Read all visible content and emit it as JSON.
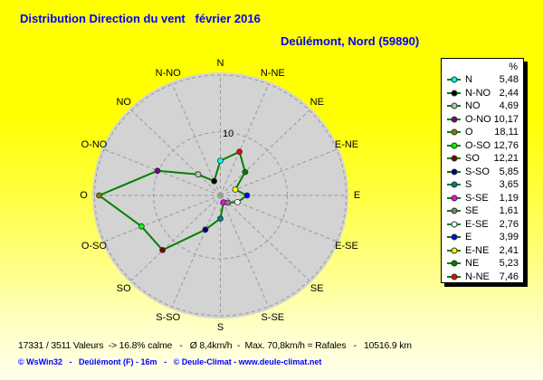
{
  "title": "Distribution Direction du vent   février 2016",
  "subtitle": "Deûlémont, Nord (59890)",
  "colors": {
    "background_top": "#ffff00",
    "background_bottom": "#ffffee",
    "disk": "#d3d3d3",
    "grid": "#999999",
    "title_text": "#0000ff",
    "body_text": "#000000",
    "credit_text": "#0000ff",
    "legend_background": "#ffffff",
    "series_line": "#008000"
  },
  "chart_data": {
    "type": "radar",
    "title": "Distribution Direction du vent février 2016",
    "subtitle": "Deûlémont, Nord (59890)",
    "unit": "%",
    "radial_tick_label": "10",
    "radial_ticks": [
      10,
      20
    ],
    "axis_max": 20,
    "grid": "dashed",
    "line_color": "#008000",
    "legend_position": "right",
    "directions": [
      {
        "label": "N",
        "angle": 0,
        "value": 5.48,
        "display": "5,48",
        "color": "#00ffff"
      },
      {
        "label": "N-NO",
        "angle": 337.5,
        "value": 2.44,
        "display": "2,44",
        "color": "#000000"
      },
      {
        "label": "NO",
        "angle": 315,
        "value": 4.69,
        "display": "4,69",
        "color": "#c0c0c0"
      },
      {
        "label": "O-NO",
        "angle": 292.5,
        "value": 10.17,
        "display": "10,17",
        "color": "#800080"
      },
      {
        "label": "O",
        "angle": 270,
        "value": 18.11,
        "display": "18,11",
        "color": "#808000"
      },
      {
        "label": "O-SO",
        "angle": 247.5,
        "value": 12.76,
        "display": "12,76",
        "color": "#00ff00"
      },
      {
        "label": "SO",
        "angle": 225,
        "value": 12.21,
        "display": "12,21",
        "color": "#800000"
      },
      {
        "label": "S-SO",
        "angle": 202.5,
        "value": 5.85,
        "display": "5,85",
        "color": "#000080"
      },
      {
        "label": "S",
        "angle": 180,
        "value": 3.65,
        "display": "3,65",
        "color": "#008080"
      },
      {
        "label": "S-SE",
        "angle": 157.5,
        "value": 1.19,
        "display": "1,19",
        "color": "#ff00ff"
      },
      {
        "label": "SE",
        "angle": 135,
        "value": 1.61,
        "display": "1,61",
        "color": "#808080"
      },
      {
        "label": "E-SE",
        "angle": 112.5,
        "value": 2.76,
        "display": "2,76",
        "color": "#ffffff"
      },
      {
        "label": "E",
        "angle": 90,
        "value": 3.99,
        "display": "3,99",
        "color": "#0000ff"
      },
      {
        "label": "E-NE",
        "angle": 67.5,
        "value": 2.41,
        "display": "2,41",
        "color": "#ffff00"
      },
      {
        "label": "NE",
        "angle": 45,
        "value": 5.23,
        "display": "5,23",
        "color": "#008000"
      },
      {
        "label": "N-NE",
        "angle": 22.5,
        "value": 7.46,
        "display": "7,46",
        "color": "#ff0000"
      }
    ]
  },
  "legend": {
    "header": "%"
  },
  "footer": {
    "stats_line": "17331 / 3511 Valeurs  -> 16.8% calme   -   Ø 8,4km/h  -  Max. 70,8km/h = Rafales   -   10516.9 km",
    "credit_line": "© WsWin32   -   Deûlémont (F) - 16m   -   © Deule-Climat - www.deule-climat.net"
  }
}
